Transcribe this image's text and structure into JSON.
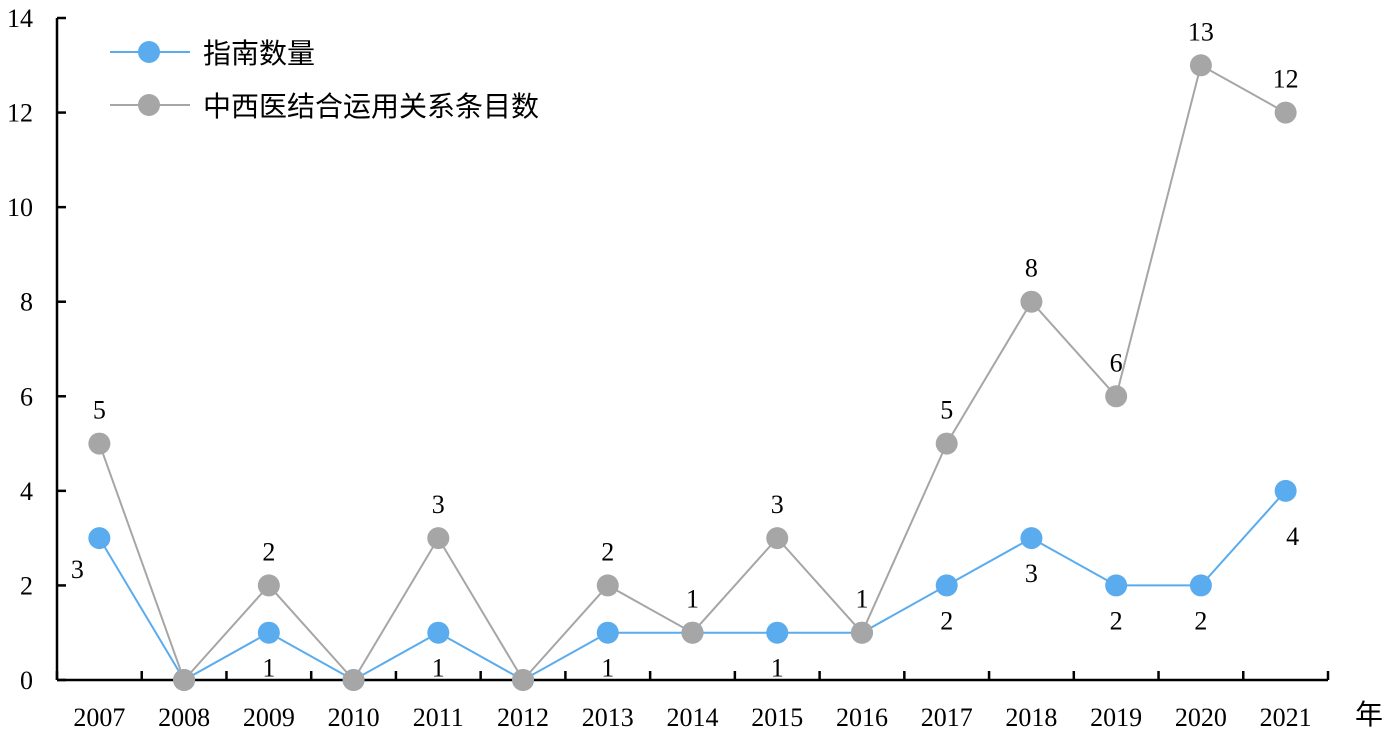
{
  "chart_data": {
    "type": "line",
    "categories": [
      "2007",
      "2008",
      "2009",
      "2010",
      "2011",
      "2012",
      "2013",
      "2014",
      "2015",
      "2016",
      "2017",
      "2018",
      "2019",
      "2020",
      "2021"
    ],
    "series": [
      {
        "name": "指南数量",
        "values": [
          3,
          0,
          1,
          0,
          1,
          0,
          1,
          1,
          1,
          1,
          2,
          3,
          2,
          2,
          4
        ],
        "color": "#5aacee"
      },
      {
        "name": "中西医结合运用关系条目数",
        "values": [
          5,
          0,
          2,
          0,
          3,
          0,
          2,
          1,
          3,
          1,
          5,
          8,
          6,
          13,
          12
        ],
        "color": "#a6a6a6"
      }
    ],
    "y_ticks": [
      "0",
      "2",
      "4",
      "6",
      "8",
      "10",
      "12",
      "14"
    ],
    "ylim": [
      0,
      14
    ],
    "x_unit_label": "年",
    "grid": false,
    "legend_position": "top-left",
    "line_color_series_1": "#5aacee",
    "line_color_series_2": "#a6a6a6"
  }
}
